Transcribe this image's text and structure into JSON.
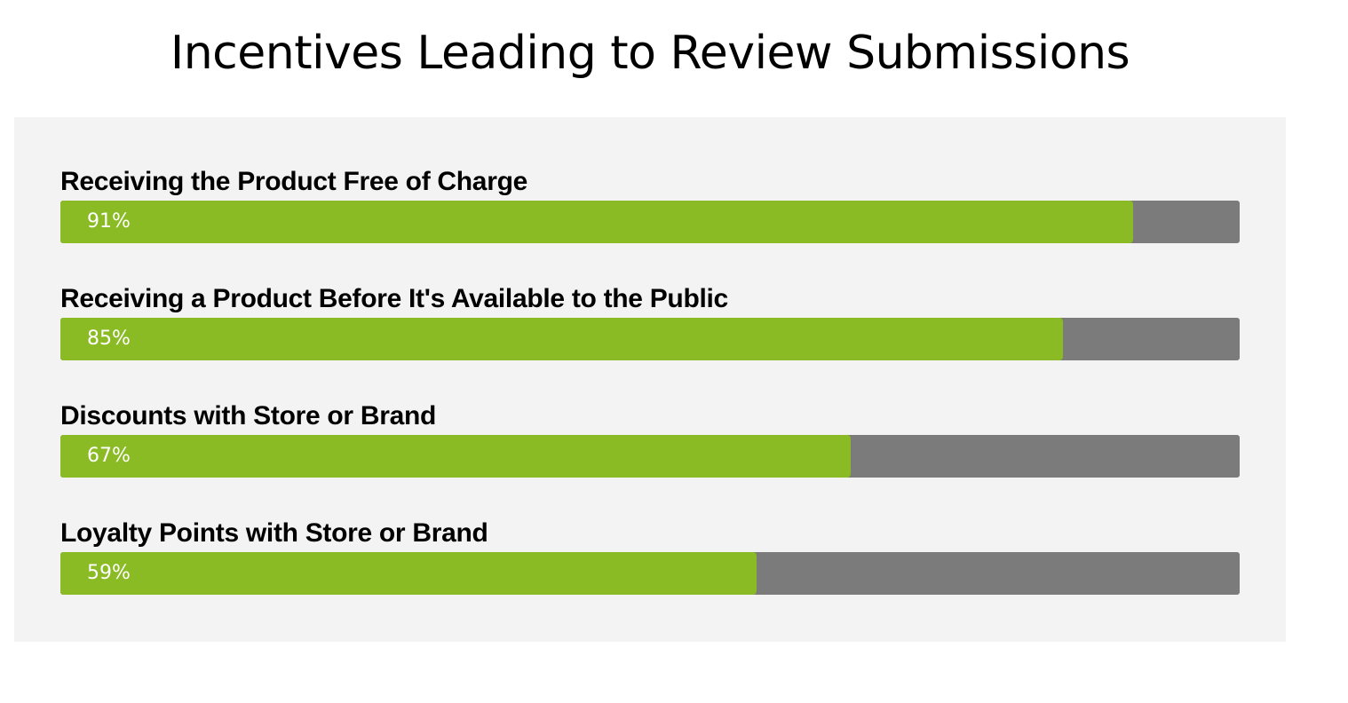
{
  "chart_data": {
    "type": "bar",
    "orientation": "horizontal",
    "title": "Incentives Leading to Review Submissions",
    "categories": [
      "Receiving the Product Free of Charge",
      "Receiving a Product Before It's Available to the Public",
      "Discounts with Store or Brand",
      "Loyalty Points with Store or Brand"
    ],
    "values": [
      91,
      85,
      67,
      59
    ],
    "value_labels": [
      "91%",
      "85%",
      "67%",
      "59%"
    ],
    "xlim": [
      0,
      100
    ],
    "grid": false,
    "legend": "none"
  },
  "colors": {
    "bar_fill": "#8aba24",
    "track": "#7b7b7b",
    "panel_background": "#f3f3f3",
    "value_text": "#ffffff"
  }
}
